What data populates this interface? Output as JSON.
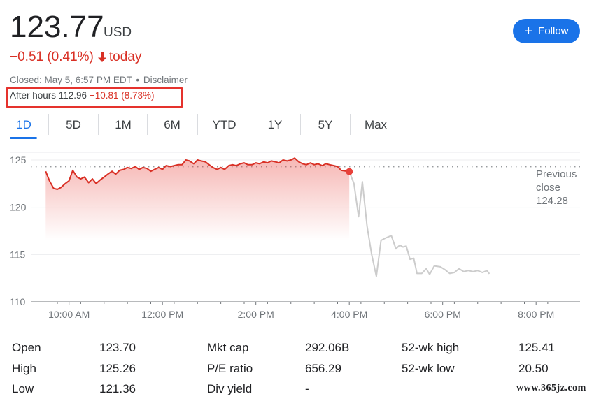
{
  "quote": {
    "price": "123.77",
    "currency": "USD",
    "change": "−0.51 (0.41%)",
    "change_period": "today",
    "closed_text": "Closed: May 5, 6:57 PM EDT",
    "separator": "•",
    "disclaimer": "Disclaimer",
    "after_hours_label": "After hours 112.96",
    "after_hours_change": "−10.81 (8.73%)"
  },
  "follow_button": {
    "label": "Follow",
    "icon": "plus-icon"
  },
  "tabs": [
    "1D",
    "5D",
    "1M",
    "6M",
    "YTD",
    "1Y",
    "5Y",
    "Max"
  ],
  "active_tab": "1D",
  "colors": {
    "accent": "#1a73e8",
    "negative": "#d93025",
    "after_hours_line": "#cccccc",
    "highlight_box": "#e5322d"
  },
  "chart_data": {
    "type": "line",
    "y_ticks": [
      "125",
      "120",
      "115",
      "110"
    ],
    "ylim": [
      110,
      126
    ],
    "x_ticks": [
      "10:00 AM",
      "12:00 PM",
      "2:00 PM",
      "4:00 PM",
      "6:00 PM",
      "8:00 PM"
    ],
    "xlim_hours": [
      9.5,
      20.6
    ],
    "previous_close": 124.28,
    "previous_close_label": [
      "Previous",
      "close",
      "124.28"
    ],
    "regular_session": [
      [
        9.5,
        123.8
      ],
      [
        9.58,
        122.8
      ],
      [
        9.67,
        122.0
      ],
      [
        9.75,
        121.9
      ],
      [
        9.83,
        122.1
      ],
      [
        9.92,
        122.5
      ],
      [
        10.0,
        122.8
      ],
      [
        10.08,
        123.9
      ],
      [
        10.17,
        123.2
      ],
      [
        10.25,
        123.0
      ],
      [
        10.33,
        123.2
      ],
      [
        10.42,
        122.6
      ],
      [
        10.5,
        123.0
      ],
      [
        10.58,
        122.5
      ],
      [
        10.67,
        122.9
      ],
      [
        10.75,
        123.2
      ],
      [
        10.83,
        123.5
      ],
      [
        10.92,
        123.8
      ],
      [
        11.0,
        123.5
      ],
      [
        11.08,
        123.9
      ],
      [
        11.17,
        124.0
      ],
      [
        11.25,
        124.2
      ],
      [
        11.33,
        124.1
      ],
      [
        11.42,
        124.3
      ],
      [
        11.5,
        124.0
      ],
      [
        11.58,
        124.2
      ],
      [
        11.67,
        124.1
      ],
      [
        11.75,
        123.8
      ],
      [
        11.83,
        124.0
      ],
      [
        11.92,
        124.2
      ],
      [
        12.0,
        124.0
      ],
      [
        12.08,
        124.4
      ],
      [
        12.17,
        124.3
      ],
      [
        12.25,
        124.4
      ],
      [
        12.33,
        124.5
      ],
      [
        12.42,
        124.5
      ],
      [
        12.5,
        125.0
      ],
      [
        12.58,
        124.9
      ],
      [
        12.67,
        124.6
      ],
      [
        12.75,
        125.0
      ],
      [
        12.83,
        124.9
      ],
      [
        12.92,
        124.8
      ],
      [
        13.0,
        124.5
      ],
      [
        13.08,
        124.2
      ],
      [
        13.17,
        124.0
      ],
      [
        13.25,
        124.2
      ],
      [
        13.33,
        124.0
      ],
      [
        13.42,
        124.4
      ],
      [
        13.5,
        124.5
      ],
      [
        13.58,
        124.4
      ],
      [
        13.67,
        124.6
      ],
      [
        13.75,
        124.7
      ],
      [
        13.83,
        124.5
      ],
      [
        13.92,
        124.5
      ],
      [
        14.0,
        124.7
      ],
      [
        14.08,
        124.6
      ],
      [
        14.17,
        124.8
      ],
      [
        14.25,
        124.7
      ],
      [
        14.33,
        124.9
      ],
      [
        14.42,
        124.8
      ],
      [
        14.5,
        124.7
      ],
      [
        14.58,
        125.0
      ],
      [
        14.67,
        124.9
      ],
      [
        14.75,
        125.0
      ],
      [
        14.83,
        125.2
      ],
      [
        14.92,
        124.8
      ],
      [
        15.0,
        124.6
      ],
      [
        15.08,
        124.5
      ],
      [
        15.17,
        124.7
      ],
      [
        15.25,
        124.5
      ],
      [
        15.33,
        124.6
      ],
      [
        15.42,
        124.4
      ],
      [
        15.5,
        124.6
      ],
      [
        15.58,
        124.5
      ],
      [
        15.67,
        124.4
      ],
      [
        15.75,
        124.3
      ],
      [
        15.83,
        123.9
      ],
      [
        16.0,
        123.77
      ]
    ],
    "after_hours_session": [
      [
        16.0,
        123.77
      ],
      [
        16.1,
        122.5
      ],
      [
        16.2,
        119.0
      ],
      [
        16.28,
        122.7
      ],
      [
        16.38,
        118.0
      ],
      [
        16.48,
        115.0
      ],
      [
        16.58,
        112.7
      ],
      [
        16.68,
        116.5
      ],
      [
        16.8,
        116.8
      ],
      [
        16.9,
        117.0
      ],
      [
        17.0,
        115.6
      ],
      [
        17.08,
        116.0
      ],
      [
        17.15,
        115.8
      ],
      [
        17.22,
        115.9
      ],
      [
        17.3,
        114.5
      ],
      [
        17.38,
        114.6
      ],
      [
        17.45,
        113.0
      ],
      [
        17.55,
        113.0
      ],
      [
        17.65,
        113.5
      ],
      [
        17.72,
        112.9
      ],
      [
        17.82,
        113.8
      ],
      [
        17.95,
        113.7
      ],
      [
        18.05,
        113.4
      ],
      [
        18.15,
        113.0
      ],
      [
        18.25,
        113.1
      ],
      [
        18.35,
        113.5
      ],
      [
        18.45,
        113.2
      ],
      [
        18.55,
        113.3
      ],
      [
        18.65,
        113.2
      ],
      [
        18.75,
        113.3
      ],
      [
        18.85,
        113.1
      ],
      [
        18.95,
        113.3
      ],
      [
        19.0,
        112.96
      ]
    ]
  },
  "stats": [
    {
      "label": "Open",
      "value": "123.70"
    },
    {
      "label": "High",
      "value": "125.26"
    },
    {
      "label": "Low",
      "value": "121.36"
    },
    {
      "label": "Mkt cap",
      "value": "292.06B"
    },
    {
      "label": "P/E ratio",
      "value": "656.29"
    },
    {
      "label": "Div yield",
      "value": "-"
    },
    {
      "label": "52-wk high",
      "value": "125.41"
    },
    {
      "label": "52-wk low",
      "value": "20.50"
    }
  ],
  "watermark": "www.365jz.com"
}
